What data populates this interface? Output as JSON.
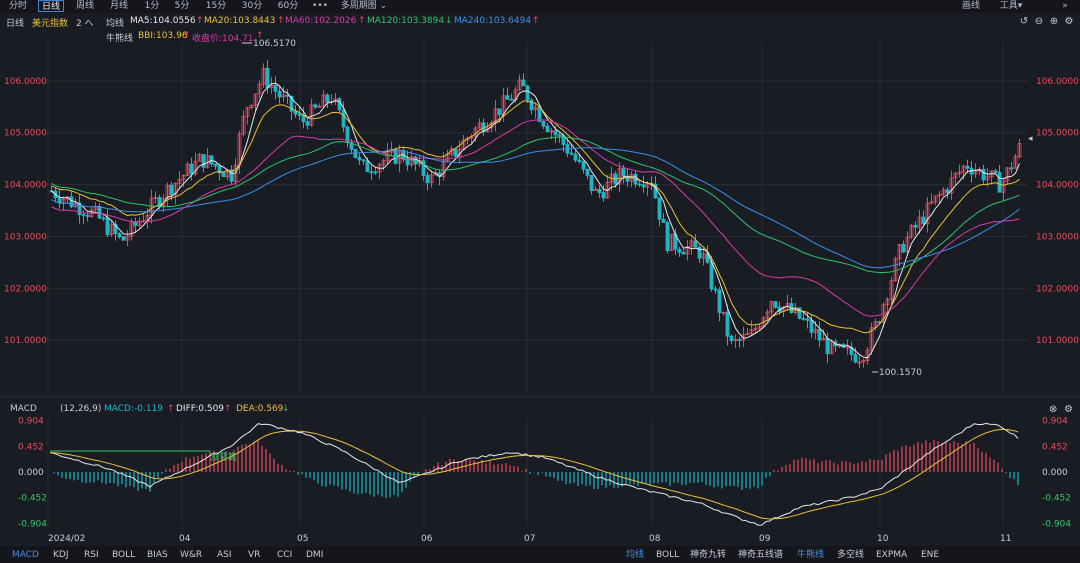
{
  "toolbar": {
    "timeframes": [
      "分时",
      "日线",
      "周线",
      "月线",
      "1分",
      "5分",
      "15分",
      "30分",
      "60分"
    ],
    "active_timeframe": "日线",
    "more_label": "•••",
    "multi_period_label": "多周期图",
    "right_items": [
      "画线",
      "工具"
    ]
  },
  "header": {
    "period_label": "日线",
    "instrument": "美元指数",
    "adjust_label": "2 へ",
    "ma_label": "均线",
    "ma5": "MA5:104.0556",
    "ma20": "MA20:103.8443",
    "ma60": "MA60:102.2026",
    "ma120": "MA120:103.3894",
    "ma240": "MA240:103.6494",
    "bull_label": "牛熊线",
    "bbi": "BBI:103.96",
    "close": "收盘价:104.71"
  },
  "colors": {
    "bg": "#1a1c24",
    "up": "#e84a5f",
    "down": "#1fb5c4",
    "ma5": "#e8e8e8",
    "ma20": "#e8c238",
    "ma60": "#d83aa8",
    "ma120": "#2cc46a",
    "ma240": "#3a8fe8",
    "grid": "#2a2d36",
    "axis_text_red": "#e84a5f",
    "axis_text_green": "#2cc46a"
  },
  "main_axis": {
    "left_labels": [
      "106.0000",
      "105.0000",
      "104.0000",
      "103.0000",
      "102.0000",
      "101.0000"
    ],
    "right_labels": [
      "106.0000",
      "105.0000",
      "104.0000",
      "103.0000",
      "102.0000",
      "101.0000"
    ],
    "high_annotation": "106.5170",
    "low_annotation": "100.1570"
  },
  "macd": {
    "label": "MACD",
    "params": "(12,26,9)",
    "macd_value": "MACD:-0.119",
    "diff_value": "DIFF:0.509",
    "dea_value": "DEA:0.569",
    "axis_labels": [
      "0.904",
      "0.452",
      "0.000",
      "-0.452",
      "-0.904"
    ],
    "cross_annotation": "顶背离"
  },
  "x_axis": {
    "labels": [
      "2024/02",
      "04",
      "05",
      "06",
      "07",
      "08",
      "09",
      "10",
      "11"
    ]
  },
  "indicator_tabs_left": [
    "MACD",
    "KDJ",
    "RSI",
    "BOLL",
    "BIAS",
    "W&R",
    "ASI",
    "VR",
    "CCI",
    "DMI"
  ],
  "indicator_tabs_right": [
    "均线",
    "BOLL",
    "神奇九转",
    "神奇五线谱",
    "牛熊线",
    "多空线",
    "EXPMA",
    "ENE"
  ],
  "chart_data": {
    "type": "line",
    "title": "美元指数 日线",
    "x": [
      "2024/02",
      "04",
      "05",
      "06",
      "07",
      "08",
      "09",
      "10",
      "11"
    ],
    "ylim": [
      100.157,
      106.517
    ],
    "series": [
      {
        "name": "MA5",
        "values": [
          103.9,
          104.2,
          105.7,
          104.4,
          105.7,
          103.2,
          100.9,
          102.9,
          104.06
        ]
      },
      {
        "name": "MA20",
        "values": [
          104.1,
          103.7,
          105.2,
          104.9,
          105.4,
          104.0,
          101.5,
          101.7,
          103.84
        ]
      },
      {
        "name": "MA60",
        "values": [
          103.2,
          103.4,
          104.0,
          104.6,
          104.9,
          104.5,
          103.4,
          102.2,
          102.2
        ]
      },
      {
        "name": "MA120",
        "values": [
          104.2,
          103.8,
          103.8,
          104.1,
          104.4,
          104.5,
          104.4,
          103.8,
          103.39
        ]
      },
      {
        "name": "MA240",
        "values": [
          103.5,
          103.6,
          103.8,
          104.0,
          104.3,
          104.4,
          104.3,
          103.9,
          103.65
        ]
      }
    ],
    "macd": {
      "ylim": [
        -0.904,
        0.904
      ],
      "diff": [
        0.1,
        -0.3,
        0.6,
        0.2,
        0.35,
        -0.3,
        -0.9,
        0.2,
        0.509
      ],
      "dea": [
        0.2,
        -0.2,
        0.5,
        0.3,
        0.3,
        -0.2,
        -0.7,
        0.0,
        0.569
      ]
    },
    "grid": true,
    "legend": "top-left"
  }
}
